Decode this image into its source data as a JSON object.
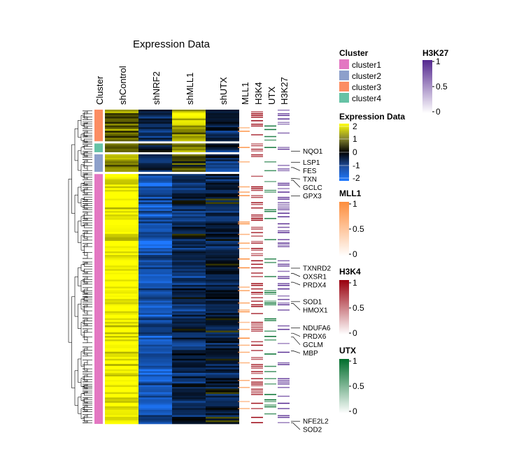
{
  "chart_data": {
    "type": "heatmap",
    "title": "Expression Data",
    "columns": [
      "shControl",
      "shNRF2",
      "shMLL1",
      "shUTX"
    ],
    "annotation_columns": [
      "MLL1",
      "H3K4",
      "UTX",
      "H3K27"
    ],
    "row_annotation_label": "Cluster",
    "clusters": [
      {
        "name": "cluster1",
        "color": "#E377C2",
        "rows": 142,
        "profile": [
          1.9,
          -1.3,
          -0.6,
          -0.4
        ]
      },
      {
        "name": "cluster2",
        "color": "#8DA0CB",
        "rows": 10,
        "profile": [
          0.8,
          -0.6,
          0.3,
          -0.9
        ]
      },
      {
        "name": "cluster3",
        "color": "#FC8D62",
        "rows": 18,
        "profile": [
          0.7,
          -0.7,
          1.4,
          -0.4
        ]
      },
      {
        "name": "cluster4",
        "color": "#66C2A5",
        "rows": 5,
        "profile": [
          0.5,
          -0.6,
          0.8,
          -0.8
        ]
      }
    ],
    "cluster_order": [
      "cluster3",
      "cluster4",
      "cluster2",
      "cluster1"
    ],
    "gene_labels": [
      {
        "gene": "NQO1",
        "row": 22
      },
      {
        "gene": "LSP1",
        "row": 27
      },
      {
        "gene": "FES",
        "row": 30
      },
      {
        "gene": "TXN",
        "row": 35
      },
      {
        "gene": "GCLC",
        "row": 36
      },
      {
        "gene": "GPX3",
        "row": 45
      },
      {
        "gene": "TXNRD2",
        "row": 86
      },
      {
        "gene": "OXSR1",
        "row": 89
      },
      {
        "gene": "PRDX4",
        "row": 94
      },
      {
        "gene": "SOD1",
        "row": 105
      },
      {
        "gene": "HMOX1",
        "row": 106
      },
      {
        "gene": "NDUFA6",
        "row": 120
      },
      {
        "gene": "PRDX6",
        "row": 123
      },
      {
        "gene": "GCLM",
        "row": 125
      },
      {
        "gene": "MBP",
        "row": 133
      },
      {
        "gene": "NFE2L2",
        "row": 173
      },
      {
        "gene": "SOD2",
        "row": 175
      }
    ],
    "legends": {
      "cluster": {
        "title": "Cluster",
        "items": [
          "cluster1",
          "cluster2",
          "cluster3",
          "cluster4"
        ]
      },
      "h3k27": {
        "title": "H3K27",
        "ticks": [
          "1",
          "0.5",
          "0"
        ],
        "color": "#54278F"
      },
      "expression": {
        "title": "Expression Data",
        "ticks": [
          "2",
          "1",
          "0",
          "-1",
          "-2"
        ],
        "range": [
          -2,
          2
        ]
      },
      "mll1": {
        "title": "MLL1",
        "ticks": [
          "1",
          "0.5",
          "0"
        ],
        "color": "#FD8D3C"
      },
      "h3k4": {
        "title": "H3K4",
        "ticks": [
          "1",
          "0.5",
          "0"
        ],
        "color": "#99000D"
      },
      "utx": {
        "title": "UTX",
        "ticks": [
          "1",
          "0.5",
          "0"
        ],
        "color": "#006D2C"
      }
    }
  }
}
